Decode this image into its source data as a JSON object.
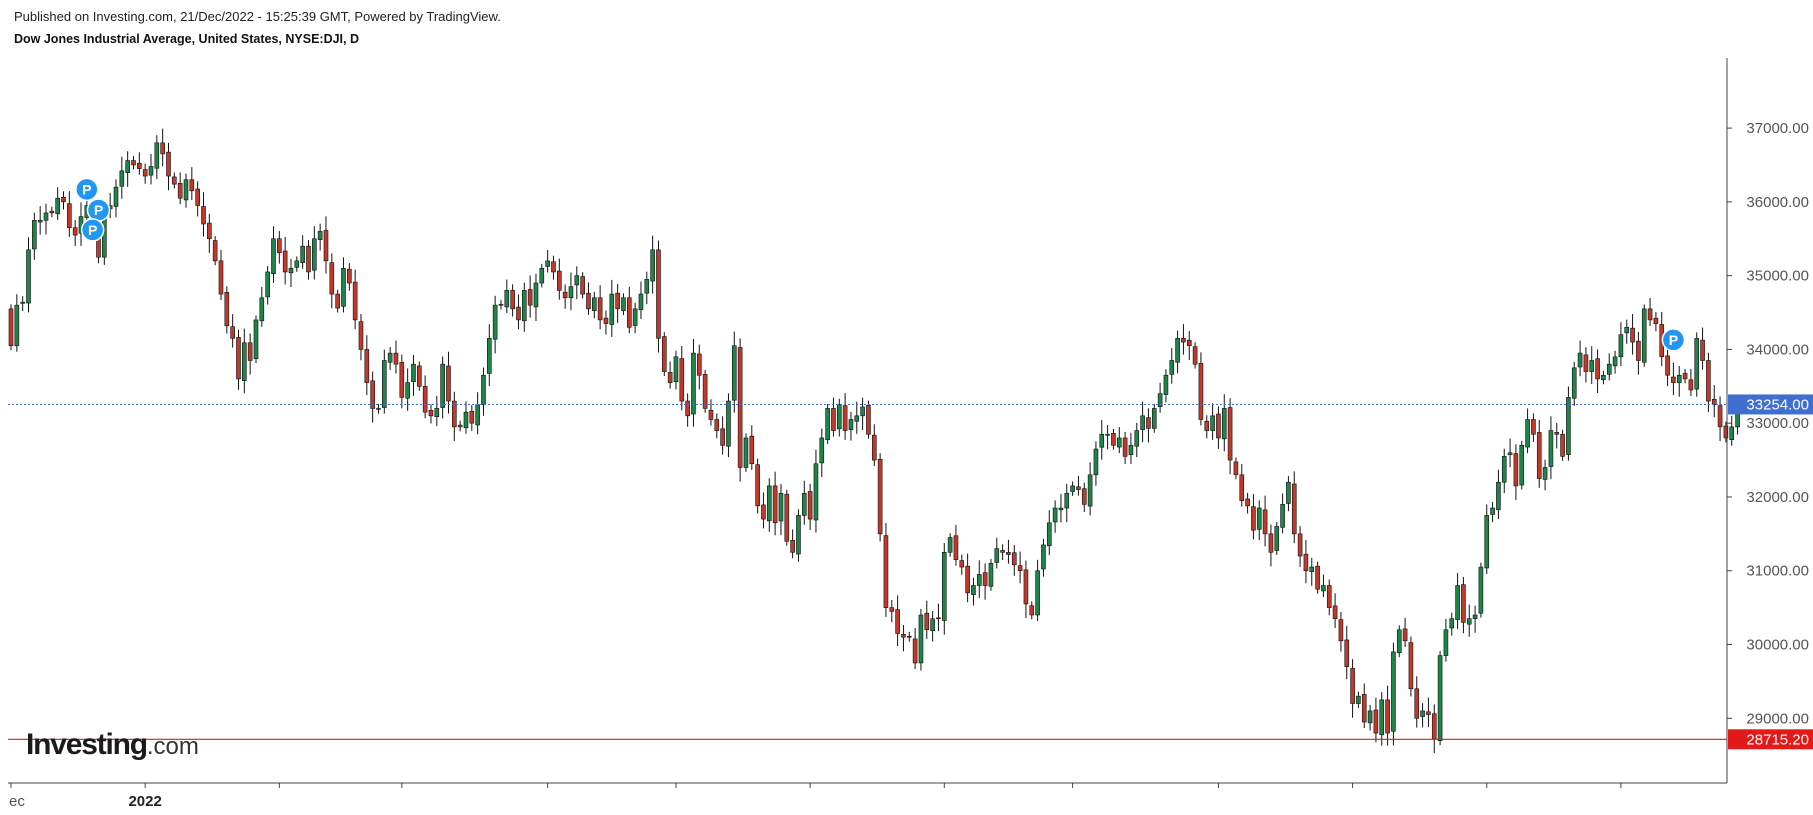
{
  "header": {
    "published": "Published on Investing.com, 21/Dec/2022 - 15:25:39 GMT, Powered by TradingView.",
    "symbol": "Dow Jones Industrial Average, United States, NYSE:DJI, D"
  },
  "logo": {
    "brand": "Investing",
    "suffix": ".com"
  },
  "colors": {
    "up": "#1e8449",
    "down": "#c0392b",
    "grid": "#000000",
    "current_line": "#3f6fd0",
    "support_line": "#e31a1a",
    "marker": "#2196f3"
  },
  "chart_data": {
    "type": "candlestick",
    "title": "Dow Jones Industrial Average, United States, NYSE:DJI, D",
    "ylim": [
      28150,
      37950
    ],
    "y_ticks": [
      "37000.00",
      "36000.00",
      "35000.00",
      "34000.00",
      "33000.00",
      "32000.00",
      "31000.00",
      "30000.00",
      "29000.00"
    ],
    "x_labels": [
      {
        "bar": 0,
        "label": "ec",
        "bold": false
      },
      {
        "bar": 23,
        "label": "2022",
        "bold": true
      }
    ],
    "x_tick_bars": [
      0,
      23,
      46,
      67,
      92,
      114,
      137,
      160,
      182,
      207,
      230,
      253,
      276
    ],
    "current_price": {
      "value": 33254.0,
      "label": "33254.00"
    },
    "support_level": {
      "value": 28715.2,
      "label": "28715.20"
    },
    "markers": [
      {
        "bar": 13,
        "price": 36170,
        "label": "P"
      },
      {
        "bar": 15,
        "price": 35890,
        "label": "P"
      },
      {
        "bar": 14,
        "price": 35620,
        "label": "P"
      },
      {
        "bar": 285,
        "price": 34130,
        "label": "P"
      }
    ],
    "closes": [
      34050,
      34600,
      34640,
      35350,
      35750,
      35750,
      35850,
      35850,
      36050,
      36000,
      35650,
      35550,
      35800,
      35950,
      35600,
      35250,
      35880,
      35950,
      36200,
      36420,
      36560,
      36500,
      36450,
      36350,
      36480,
      36800,
      36650,
      36350,
      36240,
      36050,
      36300,
      36150,
      35950,
      35700,
      35500,
      35200,
      34750,
      34320,
      34150,
      33600,
      34090,
      33850,
      34400,
      34700,
      35050,
      35500,
      35310,
      35050,
      35100,
      35200,
      35400,
      35050,
      35500,
      35600,
      35200,
      34750,
      34560,
      35100,
      34900,
      34400,
      34000,
      33550,
      33200,
      33200,
      33850,
      33950,
      33800,
      33350,
      33550,
      33800,
      33500,
      33150,
      33100,
      33200,
      33800,
      33300,
      32950,
      32950,
      33150,
      33000,
      33250,
      33650,
      34150,
      34600,
      34600,
      34800,
      34550,
      34400,
      34800,
      34600,
      34900,
      35100,
      35200,
      35050,
      34800,
      34700,
      34850,
      35000,
      34750,
      34550,
      34700,
      34400,
      34350,
      34750,
      34550,
      34700,
      34300,
      34550,
      34750,
      34950,
      35350,
      34150,
      33700,
      33550,
      33900,
      33300,
      33100,
      33950,
      33650,
      33200,
      33050,
      32900,
      32700,
      33300,
      34050,
      32400,
      32800,
      32450,
      31880,
      31700,
      32150,
      31650,
      32050,
      31400,
      31250,
      31750,
      32050,
      31700,
      32450,
      32800,
      33200,
      32900,
      33250,
      32900,
      33050,
      33100,
      33220,
      32850,
      32500,
      31500,
      30500,
      30450,
      30150,
      30100,
      30100,
      29750,
      30400,
      30200,
      30350,
      30350,
      31250,
      31450,
      31150,
      31050,
      30700,
      30800,
      30950,
      30800,
      31100,
      31300,
      31250,
      31220,
      31080,
      31000,
      30550,
      30400,
      31000,
      31350,
      31650,
      31850,
      31850,
      32050,
      32150,
      32100,
      31900,
      32300,
      32650,
      32850,
      32850,
      32700,
      32800,
      32550,
      32700,
      32900,
      33100,
      32930,
      33200,
      33400,
      33650,
      33850,
      34150,
      34100,
      34050,
      33800,
      33050,
      32900,
      33100,
      32800,
      33200,
      32500,
      32300,
      31950,
      31880,
      31550,
      31850,
      31500,
      31250,
      31600,
      31900,
      32200,
      31500,
      31200,
      31000,
      31050,
      30750,
      30800,
      30500,
      30350,
      30050,
      29700,
      29200,
      29300,
      28950,
      29100,
      28800,
      29250,
      28800,
      29900,
      30200,
      30050,
      29400,
      29000,
      29100,
      29050,
      28720,
      29850,
      30200,
      30350,
      30800,
      30300,
      30350,
      30400,
      31050,
      31750,
      31850,
      32200,
      32550,
      32600,
      32150,
      32700,
      33050,
      32850,
      32250,
      32400,
      32900,
      32850,
      32550,
      33350,
      33750,
      33950,
      33700,
      33850,
      33600,
      33650,
      33800,
      33900,
      34200,
      34300,
      34100,
      33850,
      34550,
      34400,
      34350,
      33900,
      33650,
      33550,
      33650,
      33600,
      33450,
      34150,
      33850,
      33300,
      33250,
      32950,
      32800,
      32950,
      33254
    ]
  }
}
